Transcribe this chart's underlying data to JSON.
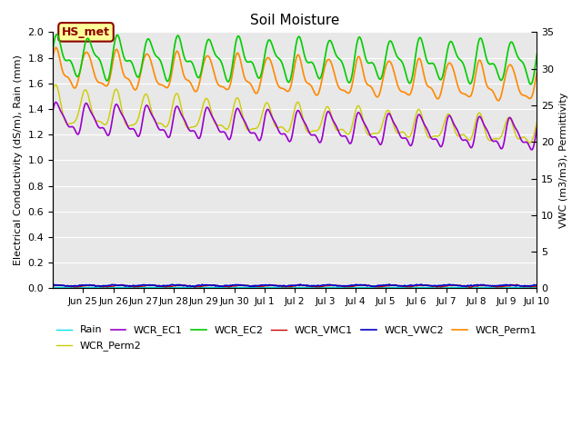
{
  "title": "Soil Moisture",
  "ylabel_left": "Electrical Conductivity (dS/m), Rain (mm)",
  "ylabel_right": "VWC (m3/m3), Permittivity",
  "ylim_left": [
    0.0,
    2.0
  ],
  "ylim_right": [
    0,
    35
  ],
  "figure_bg": "#ffffff",
  "plot_bg": "#e8e8e8",
  "annotation_text": "HS_met",
  "annotation_color": "#8B0000",
  "annotation_bg": "#ffff99",
  "colors": {
    "Rain": "#00e5e5",
    "WCR_EC1": "#9900cc",
    "WCR_EC2": "#00cc00",
    "WCR_VMC1": "#cc0000",
    "WCR_VWC2": "#0000cc",
    "WCR_Perm1": "#ff8800",
    "WCR_Perm2": "#cccc00"
  },
  "yticks_left": [
    0.0,
    0.2,
    0.4,
    0.6,
    0.8,
    1.0,
    1.2,
    1.4,
    1.6,
    1.8,
    2.0
  ],
  "yticks_right": [
    0,
    5,
    10,
    15,
    20,
    25,
    30,
    35
  ],
  "tick_labels": [
    "Jun 25",
    "Jun 26",
    "Jun 27",
    "Jun 28",
    "Jun 29",
    "Jun 30",
    "Jul 1",
    "Jul 2",
    "Jul 3",
    "Jul 4",
    "Jul 5",
    "Jul 6",
    "Jul 7",
    "Jul 8",
    "Jul 9",
    "Jul 10"
  ],
  "legend_row1": [
    "Rain",
    "WCR_EC1",
    "WCR_EC2",
    "WCR_VMC1",
    "WCR_VWC2",
    "WCR_Perm1"
  ],
  "legend_row2": [
    "WCR_Perm2"
  ]
}
